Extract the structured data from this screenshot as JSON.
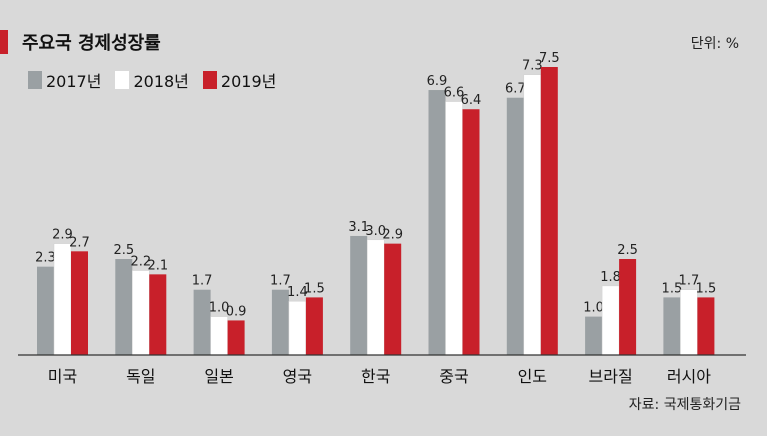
{
  "title": "주요국 경제성장률",
  "unit": "단위: %",
  "source": "자료: 국제통화기금",
  "colors": {
    "2017": "#9aa0a3",
    "2018": "#ffffff",
    "2019": "#c8202a",
    "axis": "#333333"
  },
  "chart_data": {
    "type": "bar",
    "categories": [
      "미국",
      "독일",
      "일본",
      "영국",
      "한국",
      "중국",
      "인도",
      "브라질",
      "러시아"
    ],
    "series": [
      {
        "name": "2017년",
        "values": [
          2.3,
          2.5,
          1.7,
          1.7,
          3.1,
          6.9,
          6.7,
          1.0,
          1.5
        ]
      },
      {
        "name": "2018년",
        "values": [
          2.9,
          2.2,
          1.0,
          1.4,
          3.0,
          6.6,
          7.3,
          1.8,
          1.7
        ]
      },
      {
        "name": "2019년",
        "values": [
          2.7,
          2.1,
          0.9,
          1.5,
          2.9,
          6.4,
          7.5,
          2.5,
          1.5
        ]
      }
    ],
    "value_labels": [
      [
        "2.3",
        "2.5",
        "1.7",
        "1.7",
        "3.1",
        "6.9",
        "6.7",
        "1.0",
        "1.5"
      ],
      [
        "2.9",
        "2.2",
        "1.0",
        "1.4",
        "3.0",
        "6.6",
        "7.3",
        "1.8",
        "1.7"
      ],
      [
        "2.7",
        "2.1",
        "0.9",
        "1.5",
        "2.9",
        "6.4",
        "7.5",
        "2.5",
        "1.5"
      ]
    ],
    "ylim": [
      0,
      7.5
    ],
    "grid": false,
    "legend_position": "top-left"
  }
}
